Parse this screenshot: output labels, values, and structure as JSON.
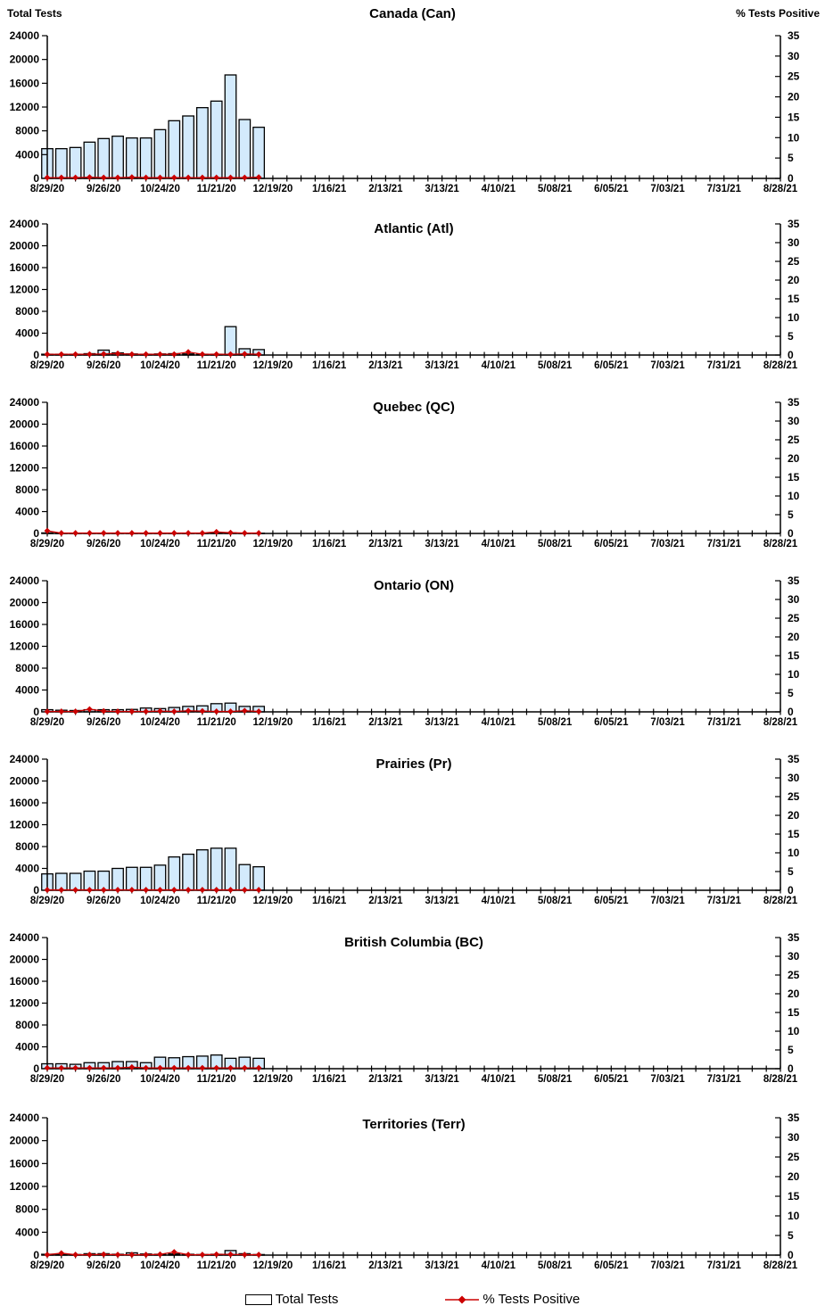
{
  "axes": {
    "y_left_title": "Total Tests",
    "y_right_title": "% Tests Positive",
    "y_left": {
      "min": 0,
      "max": 24000,
      "step": 4000,
      "tick_labels": [
        "0",
        "4000",
        "8000",
        "12000",
        "16000",
        "20000",
        "24000"
      ]
    },
    "y_right": {
      "min": 0,
      "max": 35,
      "step": 5,
      "tick_labels": [
        "0",
        "5",
        "10",
        "15",
        "20",
        "25",
        "30",
        "35"
      ]
    },
    "x_total_weeks": 53,
    "x_label_every": 4,
    "x_tick_labels": [
      "8/29/20",
      "9/26/20",
      "10/24/20",
      "11/21/20",
      "12/19/20",
      "1/16/21",
      "2/13/21",
      "3/13/21",
      "4/10/21",
      "5/08/21",
      "6/05/21",
      "7/03/21",
      "7/31/21",
      "8/28/21"
    ]
  },
  "legend": {
    "total_tests": "Total Tests",
    "pct_positive": "% Tests Positive"
  },
  "colors": {
    "bar_fill": "#d3eafc",
    "bar_border": "#000000",
    "line": "#cc0000",
    "marker": "#cc0000",
    "axis": "#000000"
  },
  "chart_data": [
    {
      "type": "bar+line",
      "title": "Canada (Can)",
      "x": [
        "8/29/20",
        "9/05/20",
        "9/12/20",
        "9/19/20",
        "9/26/20",
        "10/03/20",
        "10/10/20",
        "10/17/20",
        "10/24/20",
        "10/31/20",
        "11/07/20",
        "11/14/20",
        "11/21/20",
        "11/28/20",
        "12/05/20",
        "12/12/20"
      ],
      "series": [
        {
          "name": "Total Tests",
          "axis": "left",
          "values": [
            5000,
            5000,
            5200,
            6100,
            6700,
            7100,
            6800,
            6800,
            8200,
            9700,
            10500,
            11900,
            13000,
            17400,
            9900,
            8600
          ]
        },
        {
          "name": "% Tests Positive",
          "axis": "right",
          "values": [
            0.2,
            0.2,
            0.2,
            0.3,
            0.2,
            0.2,
            0.3,
            0.2,
            0.2,
            0.2,
            0.2,
            0.2,
            0.2,
            0.2,
            0.2,
            0.3
          ]
        }
      ],
      "ylim_left": [
        0,
        24000
      ],
      "ylim_right": [
        0,
        35
      ]
    },
    {
      "type": "bar+line",
      "title": "Atlantic (Atl)",
      "x": [
        "8/29/20",
        "9/05/20",
        "9/12/20",
        "9/19/20",
        "9/26/20",
        "10/03/20",
        "10/10/20",
        "10/17/20",
        "10/24/20",
        "10/31/20",
        "11/07/20",
        "11/14/20",
        "11/21/20",
        "11/28/20",
        "12/05/20",
        "12/12/20"
      ],
      "series": [
        {
          "name": "Total Tests",
          "axis": "left",
          "values": [
            150,
            150,
            150,
            250,
            900,
            400,
            200,
            150,
            200,
            250,
            200,
            150,
            150,
            5200,
            1150,
            1000
          ]
        },
        {
          "name": "% Tests Positive",
          "axis": "right",
          "values": [
            0.2,
            0.2,
            0.2,
            0.2,
            0.3,
            0.4,
            0.2,
            0.2,
            0.2,
            0.2,
            0.8,
            0.2,
            0.2,
            0.2,
            0.3,
            0.2
          ]
        }
      ],
      "ylim_left": [
        0,
        24000
      ],
      "ylim_right": [
        0,
        35
      ]
    },
    {
      "type": "bar+line",
      "title": "Quebec (QC)",
      "x": [
        "8/29/20",
        "9/05/20",
        "9/12/20",
        "9/19/20",
        "9/26/20",
        "10/03/20",
        "10/10/20",
        "10/17/20",
        "10/24/20",
        "10/31/20",
        "11/07/20",
        "11/14/20",
        "11/21/20",
        "11/28/20",
        "12/05/20",
        "12/12/20"
      ],
      "series": [
        {
          "name": "Total Tests",
          "axis": "left",
          "values": [
            100,
            50,
            50,
            50,
            50,
            50,
            50,
            50,
            50,
            50,
            50,
            50,
            100,
            100,
            50,
            50
          ]
        },
        {
          "name": "% Tests Positive",
          "axis": "right",
          "values": [
            0.7,
            0.1,
            0.1,
            0.1,
            0.1,
            0.1,
            0.1,
            0.1,
            0.1,
            0.1,
            0.1,
            0.1,
            0.4,
            0.2,
            0.1,
            0.1
          ]
        }
      ],
      "ylim_left": [
        0,
        24000
      ],
      "ylim_right": [
        0,
        35
      ]
    },
    {
      "type": "bar+line",
      "title": "Ontario (ON)",
      "x": [
        "8/29/20",
        "9/05/20",
        "9/12/20",
        "9/19/20",
        "9/26/20",
        "10/03/20",
        "10/10/20",
        "10/17/20",
        "10/24/20",
        "10/31/20",
        "11/07/20",
        "11/14/20",
        "11/21/20",
        "11/28/20",
        "12/05/20",
        "12/12/20"
      ],
      "series": [
        {
          "name": "Total Tests",
          "axis": "left",
          "values": [
            400,
            300,
            250,
            400,
            400,
            400,
            450,
            700,
            600,
            800,
            1000,
            1100,
            1500,
            1600,
            1000,
            1000
          ]
        },
        {
          "name": "% Tests Positive",
          "axis": "right",
          "values": [
            0.1,
            0.1,
            0.1,
            0.7,
            0.2,
            0.1,
            0.1,
            0.1,
            0.2,
            0.1,
            0.3,
            0.2,
            0.1,
            0.1,
            0.3,
            0.1
          ]
        }
      ],
      "ylim_left": [
        0,
        24000
      ],
      "ylim_right": [
        0,
        35
      ]
    },
    {
      "type": "bar+line",
      "title": "Prairies (Pr)",
      "x": [
        "8/29/20",
        "9/05/20",
        "9/12/20",
        "9/19/20",
        "9/26/20",
        "10/03/20",
        "10/10/20",
        "10/17/20",
        "10/24/20",
        "10/31/20",
        "11/07/20",
        "11/14/20",
        "11/21/20",
        "11/28/20",
        "12/05/20",
        "12/12/20"
      ],
      "series": [
        {
          "name": "Total Tests",
          "axis": "left",
          "values": [
            3000,
            3100,
            3100,
            3500,
            3500,
            4000,
            4200,
            4200,
            4600,
            6100,
            6600,
            7400,
            7700,
            7700,
            4700,
            4300
          ]
        },
        {
          "name": "% Tests Positive",
          "axis": "right",
          "values": [
            0.1,
            0.1,
            0.1,
            0.1,
            0.1,
            0.1,
            0.1,
            0.1,
            0.1,
            0.1,
            0.1,
            0.1,
            0.1,
            0.1,
            0.1,
            0.1
          ]
        }
      ],
      "ylim_left": [
        0,
        24000
      ],
      "ylim_right": [
        0,
        35
      ]
    },
    {
      "type": "bar+line",
      "title": "British Columbia (BC)",
      "x": [
        "8/29/20",
        "9/05/20",
        "9/12/20",
        "9/19/20",
        "9/26/20",
        "10/03/20",
        "10/10/20",
        "10/17/20",
        "10/24/20",
        "10/31/20",
        "11/07/20",
        "11/14/20",
        "11/21/20",
        "11/28/20",
        "12/05/20",
        "12/12/20"
      ],
      "series": [
        {
          "name": "Total Tests",
          "axis": "left",
          "values": [
            900,
            900,
            800,
            1100,
            1100,
            1300,
            1300,
            1100,
            2100,
            2000,
            2200,
            2300,
            2500,
            1900,
            2100,
            1900
          ]
        },
        {
          "name": "% Tests Positive",
          "axis": "right",
          "values": [
            0.2,
            0.2,
            0.2,
            0.2,
            0.2,
            0.2,
            0.4,
            0.2,
            0.2,
            0.2,
            0.2,
            0.2,
            0.2,
            0.2,
            0.2,
            0.2
          ]
        }
      ],
      "ylim_left": [
        0,
        24000
      ],
      "ylim_right": [
        0,
        35
      ]
    },
    {
      "type": "bar+line",
      "title": "Territories (Terr)",
      "x": [
        "8/29/20",
        "9/05/20",
        "9/12/20",
        "9/19/20",
        "9/26/20",
        "10/03/20",
        "10/10/20",
        "10/17/20",
        "10/24/20",
        "10/31/20",
        "11/07/20",
        "11/14/20",
        "11/21/20",
        "11/28/20",
        "12/05/20",
        "12/12/20"
      ],
      "series": [
        {
          "name": "Total Tests",
          "axis": "left",
          "values": [
            150,
            100,
            100,
            250,
            250,
            150,
            400,
            200,
            150,
            200,
            150,
            100,
            150,
            800,
            250,
            100
          ]
        },
        {
          "name": "% Tests Positive",
          "axis": "right",
          "values": [
            0.1,
            0.5,
            0.1,
            0.1,
            0.2,
            0.1,
            0.1,
            0.1,
            0.2,
            0.8,
            0.1,
            0.1,
            0.2,
            0.2,
            0.1,
            0.1
          ]
        }
      ],
      "ylim_left": [
        0,
        24000
      ],
      "ylim_right": [
        0,
        35
      ]
    }
  ]
}
